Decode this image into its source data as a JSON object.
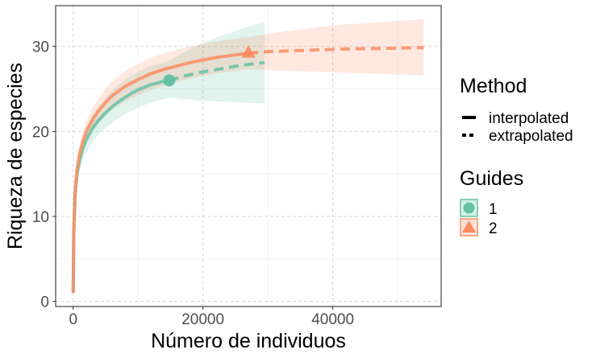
{
  "chart_data": {
    "type": "line",
    "xlabel": "Número de individuos",
    "ylabel": "Riqueza de especies",
    "xlim": [
      -2700,
      56700
    ],
    "ylim": [
      -0.6,
      34.8
    ],
    "x_ticks": [
      0,
      20000,
      40000
    ],
    "x_tick_labels": [
      "0",
      "20000",
      "40000"
    ],
    "y_ticks": [
      0,
      10,
      20,
      30
    ],
    "y_tick_labels": [
      "0",
      "10",
      "20",
      "30"
    ],
    "grid": true,
    "legend_position": "right",
    "legends": {
      "method": {
        "title": "Method",
        "entries": [
          {
            "label": "interpolated",
            "linetype": "solid"
          },
          {
            "label": "extrapolated",
            "linetype": "dashed"
          }
        ]
      },
      "guides": {
        "title": "Guides",
        "entries": [
          {
            "label": "1",
            "shape": "circle",
            "color": "#66c2a5"
          },
          {
            "label": "2",
            "shape": "triangle",
            "color": "#fc8d62"
          }
        ]
      }
    },
    "series": [
      {
        "name": "1",
        "color": "#66c2a5",
        "observed": {
          "x": 14800,
          "y": 26.0
        },
        "interpolated": {
          "x": [
            0,
            100,
            300,
            600,
            1000,
            1500,
            2000,
            3000,
            4000,
            5000,
            6000,
            7000,
            8000,
            9000,
            10000,
            11000,
            12000,
            13000,
            14000,
            14800
          ],
          "y": [
            1.0,
            8.0,
            12.5,
            15.0,
            16.7,
            18.0,
            19.0,
            20.4,
            21.4,
            22.2,
            22.9,
            23.5,
            24.0,
            24.5,
            24.9,
            25.2,
            25.5,
            25.7,
            25.9,
            26.0
          ]
        },
        "extrapolated": {
          "x": [
            14800,
            17000,
            20000,
            23000,
            26000,
            29500
          ],
          "y": [
            26.0,
            26.5,
            27.0,
            27.4,
            27.8,
            28.1
          ]
        },
        "ci_x": [
          0,
          100,
          300,
          600,
          1000,
          1500,
          2000,
          3000,
          4000,
          5000,
          6000,
          7000,
          8000,
          9000,
          10000,
          11000,
          12000,
          13000,
          14000,
          14800,
          17000,
          20000,
          23000,
          26000,
          29500
        ],
        "ci_lower": [
          1.0,
          7.6,
          11.8,
          14.0,
          15.5,
          16.6,
          17.5,
          18.8,
          19.7,
          20.4,
          21.0,
          21.5,
          22.0,
          22.4,
          22.8,
          23.1,
          23.4,
          23.6,
          23.8,
          24.0,
          23.8,
          23.6,
          23.5,
          23.4,
          23.3
        ],
        "ci_upper": [
          1.0,
          8.4,
          13.2,
          16.0,
          17.9,
          19.4,
          20.5,
          22.0,
          23.1,
          24.0,
          24.8,
          25.5,
          26.1,
          26.6,
          27.0,
          27.4,
          27.7,
          27.9,
          28.1,
          28.3,
          29.3,
          30.4,
          31.3,
          32.1,
          32.9
        ]
      },
      {
        "name": "2",
        "color": "#fc8d62",
        "observed": {
          "x": 27000,
          "y": 29.2
        },
        "interpolated": {
          "x": [
            0,
            100,
            300,
            600,
            1000,
            1500,
            2000,
            3000,
            4000,
            5000,
            6000,
            8000,
            10000,
            12000,
            14000,
            16000,
            18000,
            20000,
            22000,
            24000,
            26000,
            27000
          ],
          "y": [
            1.0,
            8.2,
            12.9,
            15.6,
            17.4,
            18.8,
            19.9,
            21.4,
            22.5,
            23.4,
            24.2,
            25.3,
            26.1,
            26.8,
            27.3,
            27.7,
            28.1,
            28.4,
            28.7,
            28.9,
            29.1,
            29.2
          ]
        },
        "extrapolated": {
          "x": [
            27000,
            30000,
            34000,
            38000,
            42000,
            46000,
            50000,
            54000
          ],
          "y": [
            29.2,
            29.4,
            29.5,
            29.6,
            29.7,
            29.75,
            29.8,
            29.85
          ]
        },
        "ci_x": [
          0,
          100,
          300,
          600,
          1000,
          1500,
          2000,
          3000,
          4000,
          5000,
          6000,
          8000,
          10000,
          12000,
          14000,
          16000,
          18000,
          20000,
          22000,
          24000,
          26000,
          27000,
          30000,
          34000,
          38000,
          42000,
          46000,
          50000,
          54000
        ],
        "ci_lower": [
          1.0,
          7.8,
          12.2,
          14.7,
          16.3,
          17.6,
          18.6,
          20.0,
          21.0,
          21.8,
          22.5,
          23.5,
          24.3,
          24.9,
          25.4,
          25.8,
          26.2,
          26.5,
          26.8,
          27.0,
          27.2,
          27.3,
          27.2,
          27.1,
          27.0,
          26.9,
          26.8,
          26.7,
          26.6
        ],
        "ci_upper": [
          1.0,
          8.6,
          13.6,
          16.5,
          18.5,
          20.0,
          21.2,
          22.8,
          24.0,
          25.0,
          25.9,
          27.1,
          27.9,
          28.7,
          29.2,
          29.6,
          30.0,
          30.3,
          30.6,
          30.8,
          31.0,
          31.1,
          31.5,
          31.9,
          32.3,
          32.6,
          32.8,
          33.0,
          33.2
        ]
      }
    ]
  }
}
